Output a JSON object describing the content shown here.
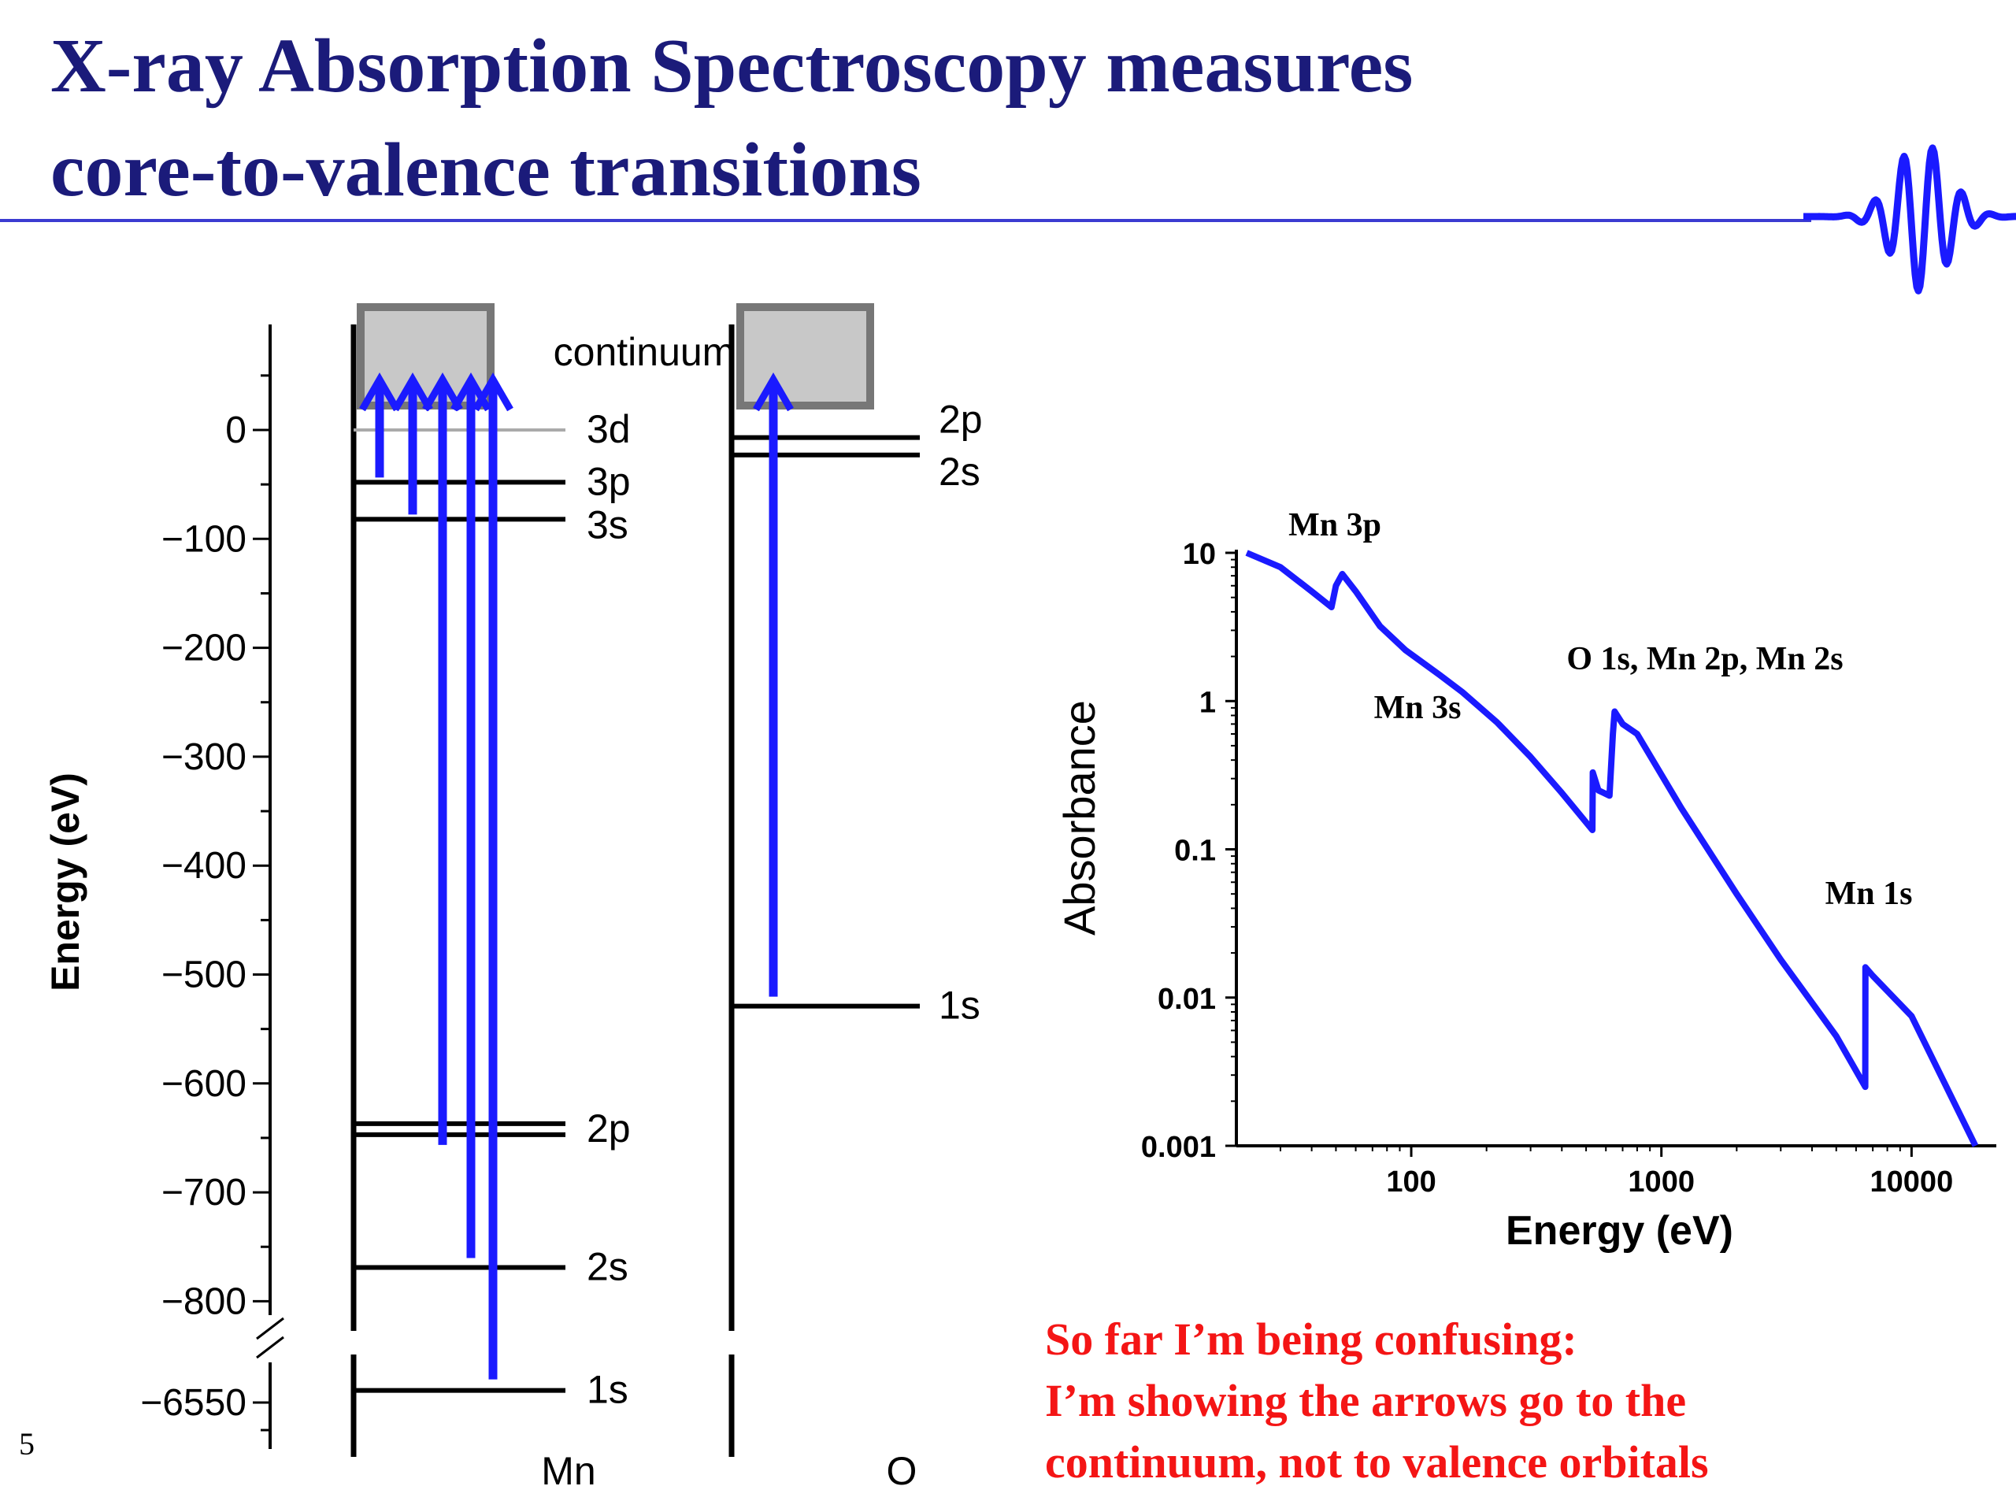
{
  "slide": {
    "title_line1": "X-ray Absorption Spectroscopy measures",
    "title_line2": "core-to-valence transitions",
    "page_number": "5",
    "note_lines": [
      "So far I’m being confusing:",
      "I’m showing the arrows go to the",
      "continuum, not to valence orbitals"
    ],
    "colors": {
      "title": "#1b1b7a",
      "rule": "#3b3bd1",
      "arrow": "#1a1aff",
      "note": "#f41515",
      "continuum_fill": "#c8c8c8"
    },
    "logo_icon": "wave-packet-icon"
  },
  "chart_data": [
    {
      "type": "energy-level-diagram",
      "ylabel": "Energy (eV)",
      "yticks": [
        "0",
        "−100",
        "−200",
        "−300",
        "−400",
        "−500",
        "−600",
        "−700",
        "−800",
        "−6550"
      ],
      "continuum_label": "continuum",
      "columns": [
        {
          "name": "Mn",
          "levels": [
            {
              "label": "3d",
              "energy": 0,
              "double": false
            },
            {
              "label": "3p",
              "energy": -48,
              "double": false
            },
            {
              "label": "3s",
              "energy": -82,
              "double": false
            },
            {
              "label": "2p",
              "energy": -642,
              "double": true
            },
            {
              "label": "2s",
              "energy": -769,
              "double": false
            },
            {
              "label": "1s",
              "energy": -6539,
              "double": false
            }
          ]
        },
        {
          "name": "O",
          "levels": [
            {
              "label": "2p",
              "energy": -7,
              "double": false
            },
            {
              "label": "2s",
              "energy": -23,
              "double": false
            },
            {
              "label": "1s",
              "energy": -529,
              "double": false
            }
          ]
        }
      ]
    },
    {
      "type": "line",
      "xlabel": "Energy (eV)",
      "ylabel": "Absorbance",
      "xscale": "log",
      "yscale": "log",
      "xlim": [
        20,
        20000
      ],
      "ylim": [
        0.001,
        10
      ],
      "xticks": [
        "100",
        "1000",
        "10000"
      ],
      "yticks": [
        "10",
        "1",
        "0.1",
        "0.01",
        "0.001"
      ],
      "annotations": [
        {
          "text": "Mn 3p"
        },
        {
          "text": "Mn 3s"
        },
        {
          "text": "O 1s, Mn 2p, Mn 2s"
        },
        {
          "text": "Mn 1s"
        }
      ],
      "series": [
        {
          "x": [
            22,
            30,
            40,
            48,
            50,
            53,
            60,
            75,
            95,
            130,
            160,
            220,
            300,
            400,
            530,
            532,
            560,
            620,
            640,
            650,
            700,
            800,
            1200,
            2000,
            3000,
            5000,
            6530,
            6540,
            7000,
            10000,
            18000
          ],
          "y": [
            10,
            8,
            5.5,
            4.3,
            6,
            7.2,
            5.5,
            3.2,
            2.2,
            1.5,
            1.15,
            0.72,
            0.42,
            0.24,
            0.135,
            0.33,
            0.25,
            0.23,
            0.6,
            0.85,
            0.7,
            0.6,
            0.19,
            0.05,
            0.018,
            0.0055,
            0.0025,
            0.016,
            0.014,
            0.0075,
            0.001
          ]
        }
      ]
    }
  ]
}
